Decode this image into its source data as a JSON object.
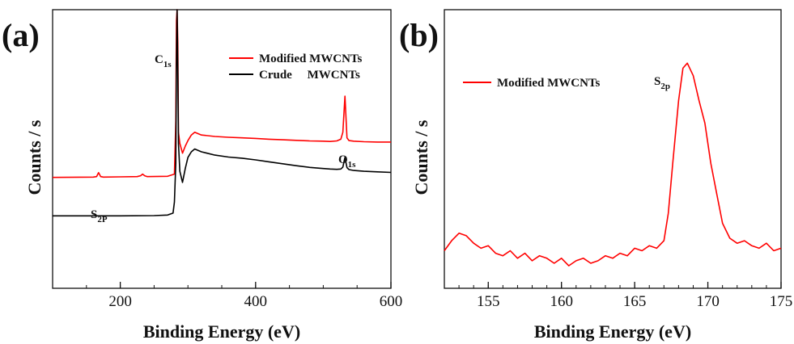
{
  "chart_data": [
    {
      "type": "line",
      "panel_label": "(a)",
      "xlabel": "Binding Energy (eV)",
      "ylabel": "Counts / s",
      "xlim": [
        100,
        600
      ],
      "x_ticks": [
        200,
        400,
        600
      ],
      "x_tick_labels": [
        "200",
        "400",
        "600"
      ],
      "legend": {
        "position": "top-right",
        "entries": [
          "Modified MWCNTs",
          "Crude     MWCNTs"
        ]
      },
      "annotations": [
        {
          "text": "C",
          "sub": "1s",
          "x": 284
        },
        {
          "text": "O",
          "sub": "1s",
          "x": 532
        },
        {
          "text": "S",
          "sub": "2P",
          "x": 168
        }
      ],
      "series": [
        {
          "name": "Modified MWCNTs",
          "color": "#ff0000",
          "x": [
            100,
            160,
            165,
            168,
            171,
            175,
            200,
            225,
            230,
            233,
            236,
            240,
            270,
            280,
            282,
            283,
            284,
            285,
            286,
            288,
            292,
            296,
            300,
            305,
            310,
            315,
            320,
            340,
            360,
            380,
            400,
            420,
            440,
            460,
            480,
            500,
            510,
            520,
            526,
            529,
            532,
            535,
            538,
            545,
            560,
            580,
            600
          ],
          "y": [
            39.8,
            39.9,
            40.1,
            41.5,
            40.1,
            39.9,
            40.0,
            40.1,
            40.4,
            41.0,
            40.4,
            40.1,
            40.2,
            41.0,
            60,
            96,
            100,
            88,
            56,
            52,
            48.5,
            51,
            53,
            55,
            56,
            55.5,
            55,
            54.5,
            54.2,
            54.0,
            53.8,
            53.5,
            53.3,
            53.1,
            52.9,
            52.8,
            52.7,
            52.9,
            53.5,
            56,
            69,
            54,
            53,
            52.8,
            52.6,
            52.5,
            52.5
          ]
        },
        {
          "name": "Crude     MWCNTs",
          "color": "#000000",
          "x": [
            100,
            150,
            200,
            250,
            270,
            278,
            280,
            282,
            283,
            284,
            285,
            286,
            288,
            292,
            296,
            300,
            305,
            310,
            315,
            320,
            340,
            360,
            380,
            400,
            420,
            440,
            460,
            480,
            500,
            510,
            520,
            526,
            529,
            532,
            535,
            538,
            545,
            560,
            580,
            600
          ],
          "y": [
            26.0,
            26.0,
            26.0,
            26.1,
            26.3,
            27.0,
            31,
            45,
            80,
            100,
            78,
            52,
            42,
            38,
            43,
            47,
            49,
            50,
            49.5,
            49,
            47.8,
            47.1,
            46.7,
            46.1,
            45.4,
            44.7,
            44.0,
            43.4,
            43.0,
            42.8,
            42.7,
            42.8,
            43.5,
            47,
            43.3,
            42.6,
            42.3,
            42.0,
            41.8,
            41.6
          ]
        }
      ]
    },
    {
      "type": "line",
      "panel_label": "(b)",
      "xlabel": "Binding Energy (eV)",
      "ylabel": "Counts / s",
      "xlim": [
        152,
        175
      ],
      "x_ticks": [
        155,
        160,
        165,
        170,
        175
      ],
      "x_tick_labels": [
        "155",
        "160",
        "165",
        "170",
        "175"
      ],
      "legend": {
        "position": "top-left",
        "entries": [
          "Modified MWCNTs"
        ]
      },
      "annotations": [
        {
          "text": "S",
          "sub": "2p",
          "x": 167.6
        }
      ],
      "series": [
        {
          "name": "Modified MWCNTs",
          "color": "#ff0000",
          "x": [
            152,
            152.5,
            153,
            153.5,
            154,
            154.5,
            155,
            155.5,
            156,
            156.5,
            157,
            157.5,
            158,
            158.5,
            159,
            159.5,
            160,
            160.5,
            161,
            161.5,
            162,
            162.5,
            163,
            163.5,
            164,
            164.5,
            165,
            165.5,
            166,
            166.5,
            167,
            167.3,
            167.6,
            168,
            168.3,
            168.6,
            169,
            169.4,
            169.8,
            170.2,
            170.6,
            171,
            171.5,
            172,
            172.5,
            173,
            173.5,
            174,
            174.5,
            175
          ],
          "y": [
            15,
            19,
            22,
            21,
            18,
            16,
            17,
            14,
            13,
            15,
            12,
            14,
            11,
            13,
            12,
            10,
            12,
            9,
            11,
            12,
            10,
            11,
            13,
            12,
            14,
            13,
            16,
            15,
            17,
            16,
            19,
            30,
            50,
            75,
            88,
            90,
            85,
            75,
            66,
            50,
            38,
            26,
            20,
            18,
            19,
            17,
            16,
            18,
            15,
            16
          ]
        }
      ]
    }
  ]
}
